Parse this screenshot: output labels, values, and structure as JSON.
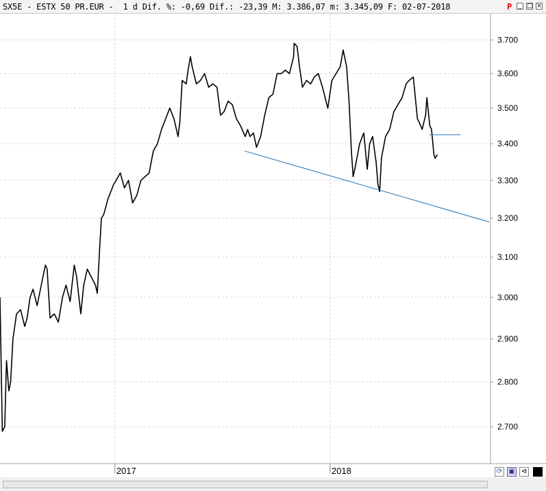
{
  "window": {
    "title": "SX5E - ESTX 50 PR.EUR -  1 d Dif. %: -0,69 Dif.: -23,39 M: 3.386,07 m: 3.345,09 F: 02-07-2018",
    "flag": "P",
    "min_label": "_",
    "max_label": "□",
    "close_label": "×"
  },
  "colors": {
    "price_line": "#000000",
    "trend_line": "#1f6fb5",
    "grid": "#d8d8d8",
    "flag": "#e00000"
  },
  "chart_data": {
    "type": "line",
    "title": "SX5E - ESTX 50 PR.EUR - 1 d",
    "x_tick_labels": [
      "2017",
      "2018"
    ],
    "y_tick_labels": [
      "2.700",
      "2.800",
      "2.900",
      "3.000",
      "3.100",
      "3.200",
      "3.300",
      "3.400",
      "3.500",
      "3.600",
      "3.700"
    ],
    "y_ticks": [
      2700,
      2800,
      2900,
      3000,
      3100,
      3200,
      3300,
      3400,
      3500,
      3600,
      3700
    ],
    "y_scale": "log",
    "ylim": [
      2620,
      3780
    ],
    "xlim": [
      "2016-06-20",
      "2018-09-30"
    ],
    "grid": true,
    "series": [
      {
        "type": "line",
        "points": [
          [
            "2016-06-20",
            3000
          ],
          [
            "2016-06-24",
            2690
          ],
          [
            "2016-06-28",
            2700
          ],
          [
            "2016-07-01",
            2850
          ],
          [
            "2016-07-05",
            2780
          ],
          [
            "2016-07-08",
            2800
          ],
          [
            "2016-07-12",
            2900
          ],
          [
            "2016-07-18",
            2960
          ],
          [
            "2016-07-25",
            2970
          ],
          [
            "2016-08-01",
            2930
          ],
          [
            "2016-08-05",
            2950
          ],
          [
            "2016-08-10",
            3000
          ],
          [
            "2016-08-15",
            3020
          ],
          [
            "2016-08-22",
            2980
          ],
          [
            "2016-08-29",
            3030
          ],
          [
            "2016-09-05",
            3080
          ],
          [
            "2016-09-08",
            3070
          ],
          [
            "2016-09-13",
            2950
          ],
          [
            "2016-09-20",
            2960
          ],
          [
            "2016-09-27",
            2940
          ],
          [
            "2016-10-04",
            3000
          ],
          [
            "2016-10-10",
            3030
          ],
          [
            "2016-10-17",
            2990
          ],
          [
            "2016-10-24",
            3080
          ],
          [
            "2016-10-28",
            3050
          ],
          [
            "2016-11-04",
            2960
          ],
          [
            "2016-11-09",
            3030
          ],
          [
            "2016-11-15",
            3070
          ],
          [
            "2016-11-22",
            3050
          ],
          [
            "2016-11-29",
            3030
          ],
          [
            "2016-12-02",
            3010
          ],
          [
            "2016-12-06",
            3120
          ],
          [
            "2016-12-09",
            3200
          ],
          [
            "2016-12-13",
            3210
          ],
          [
            "2016-12-20",
            3250
          ],
          [
            "2016-12-30",
            3290
          ],
          [
            "2017-01-03",
            3300
          ],
          [
            "2017-01-10",
            3320
          ],
          [
            "2017-01-17",
            3280
          ],
          [
            "2017-01-24",
            3300
          ],
          [
            "2017-01-31",
            3240
          ],
          [
            "2017-02-07",
            3260
          ],
          [
            "2017-02-14",
            3300
          ],
          [
            "2017-02-21",
            3310
          ],
          [
            "2017-02-28",
            3320
          ],
          [
            "2017-03-07",
            3380
          ],
          [
            "2017-03-14",
            3400
          ],
          [
            "2017-03-21",
            3440
          ],
          [
            "2017-03-28",
            3470
          ],
          [
            "2017-04-04",
            3500
          ],
          [
            "2017-04-11",
            3470
          ],
          [
            "2017-04-18",
            3420
          ],
          [
            "2017-04-21",
            3460
          ],
          [
            "2017-04-25",
            3580
          ],
          [
            "2017-05-02",
            3570
          ],
          [
            "2017-05-05",
            3610
          ],
          [
            "2017-05-09",
            3650
          ],
          [
            "2017-05-12",
            3620
          ],
          [
            "2017-05-19",
            3570
          ],
          [
            "2017-05-26",
            3580
          ],
          [
            "2017-06-02",
            3600
          ],
          [
            "2017-06-09",
            3560
          ],
          [
            "2017-06-16",
            3570
          ],
          [
            "2017-06-23",
            3560
          ],
          [
            "2017-06-29",
            3480
          ],
          [
            "2017-07-05",
            3490
          ],
          [
            "2017-07-12",
            3520
          ],
          [
            "2017-07-19",
            3510
          ],
          [
            "2017-07-26",
            3470
          ],
          [
            "2017-08-02",
            3450
          ],
          [
            "2017-08-10",
            3420
          ],
          [
            "2017-08-14",
            3440
          ],
          [
            "2017-08-18",
            3420
          ],
          [
            "2017-08-24",
            3430
          ],
          [
            "2017-08-29",
            3390
          ],
          [
            "2017-09-05",
            3420
          ],
          [
            "2017-09-12",
            3480
          ],
          [
            "2017-09-19",
            3530
          ],
          [
            "2017-09-26",
            3540
          ],
          [
            "2017-10-03",
            3600
          ],
          [
            "2017-10-10",
            3600
          ],
          [
            "2017-10-17",
            3610
          ],
          [
            "2017-10-24",
            3600
          ],
          [
            "2017-10-31",
            3650
          ],
          [
            "2017-11-01",
            3690
          ],
          [
            "2017-11-06",
            3680
          ],
          [
            "2017-11-10",
            3620
          ],
          [
            "2017-11-15",
            3560
          ],
          [
            "2017-11-22",
            3580
          ],
          [
            "2017-11-29",
            3570
          ],
          [
            "2017-12-05",
            3590
          ],
          [
            "2017-12-12",
            3600
          ],
          [
            "2017-12-19",
            3560
          ],
          [
            "2017-12-28",
            3500
          ],
          [
            "2018-01-04",
            3580
          ],
          [
            "2018-01-11",
            3600
          ],
          [
            "2018-01-18",
            3620
          ],
          [
            "2018-01-23",
            3670
          ],
          [
            "2018-01-29",
            3620
          ],
          [
            "2018-02-02",
            3520
          ],
          [
            "2018-02-06",
            3380
          ],
          [
            "2018-02-09",
            3310
          ],
          [
            "2018-02-13",
            3340
          ],
          [
            "2018-02-20",
            3400
          ],
          [
            "2018-02-27",
            3430
          ],
          [
            "2018-03-05",
            3330
          ],
          [
            "2018-03-09",
            3400
          ],
          [
            "2018-03-14",
            3420
          ],
          [
            "2018-03-20",
            3350
          ],
          [
            "2018-03-23",
            3290
          ],
          [
            "2018-03-26",
            3270
          ],
          [
            "2018-03-29",
            3360
          ],
          [
            "2018-04-05",
            3420
          ],
          [
            "2018-04-12",
            3440
          ],
          [
            "2018-04-19",
            3490
          ],
          [
            "2018-04-26",
            3510
          ],
          [
            "2018-05-03",
            3530
          ],
          [
            "2018-05-10",
            3570
          ],
          [
            "2018-05-15",
            3580
          ],
          [
            "2018-05-22",
            3590
          ],
          [
            "2018-05-29",
            3470
          ],
          [
            "2018-06-01",
            3460
          ],
          [
            "2018-06-06",
            3440
          ],
          [
            "2018-06-12",
            3480
          ],
          [
            "2018-06-14",
            3530
          ],
          [
            "2018-06-19",
            3450
          ],
          [
            "2018-06-22",
            3440
          ],
          [
            "2018-06-26",
            3370
          ],
          [
            "2018-06-28",
            3360
          ],
          [
            "2018-07-02",
            3370
          ]
        ]
      },
      {
        "type": "line",
        "points": [
          [
            "2017-08-09",
            3380
          ],
          [
            "2018-09-28",
            3190
          ]
        ]
      },
      {
        "type": "line",
        "points": [
          [
            "2018-06-18",
            3425
          ],
          [
            "2018-08-10",
            3425
          ]
        ]
      }
    ]
  }
}
